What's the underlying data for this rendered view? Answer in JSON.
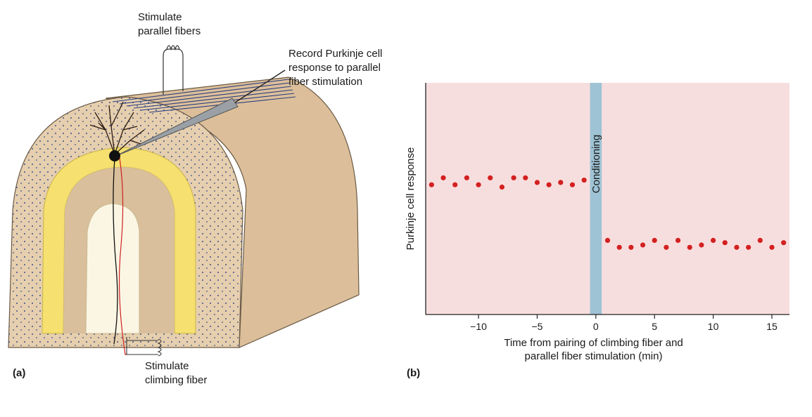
{
  "panel_a": {
    "label": "(a)",
    "stimulate_parallel": [
      "Stimulate",
      "parallel fibers"
    ],
    "record": [
      "Record Purkinje cell",
      "response to parallel",
      "fiber stimulation"
    ],
    "stimulate_climbing": [
      "Stimulate",
      "climbing fiber"
    ]
  },
  "panel_b": {
    "label": "(b)"
  },
  "chart_data": {
    "type": "scatter",
    "title": "",
    "xlabel": "Time from pairing of climbing fiber and parallel fiber stimulation (min)",
    "xlabel_lines": [
      "Time from pairing of climbing fiber and",
      "parallel fiber stimulation (min)"
    ],
    "ylabel": "Purkinje cell response",
    "xlim": [
      -14.5,
      16.5
    ],
    "ylim": [
      0,
      10
    ],
    "xticks": [
      -10,
      -5,
      0,
      5,
      10,
      15
    ],
    "xtick_labels": [
      "−10",
      "−5",
      "0",
      "5",
      "10",
      "15"
    ],
    "y_ticks_shown": false,
    "annotation": "Conditioning",
    "conditioning_band": [
      -0.5,
      0.5
    ],
    "colors": {
      "background": "#f7dede",
      "points": "#d42020",
      "band": "#9ec3d4"
    },
    "series": [
      {
        "x": [
          -14,
          -13,
          -12,
          -11,
          -10,
          -9,
          -8,
          -7,
          -6,
          -5,
          -4,
          -3,
          -2,
          -1
        ],
        "y": [
          5.6,
          5.9,
          5.6,
          5.9,
          5.6,
          5.9,
          5.5,
          5.9,
          5.9,
          5.7,
          5.6,
          5.7,
          5.6,
          5.8
        ]
      },
      {
        "x": [
          1,
          2,
          3,
          4,
          5,
          6,
          7,
          8,
          9,
          10,
          11,
          12,
          13,
          14,
          15,
          16
        ],
        "y": [
          3.2,
          2.9,
          2.9,
          3.0,
          3.2,
          2.9,
          3.2,
          2.9,
          3.0,
          3.2,
          3.1,
          2.9,
          2.9,
          3.2,
          2.9,
          3.1
        ]
      }
    ]
  }
}
